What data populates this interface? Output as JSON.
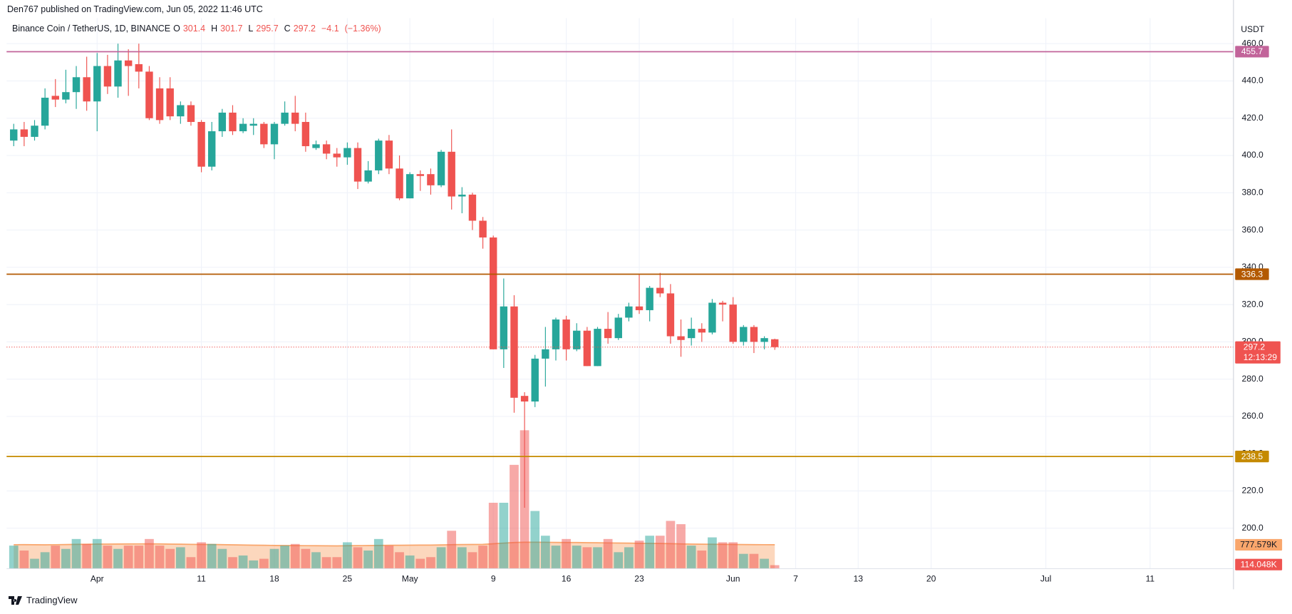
{
  "header": {
    "published": "Den767 published on TradingView.com, Jun 05, 2022 11:46 UTC",
    "symbol": "Binance Coin / TetherUS, 1D, BINANCE"
  },
  "footer": {
    "brand": "TradingView"
  },
  "chart_data": {
    "type": "candlestick",
    "currency": "USDT",
    "ohlc_header": {
      "open": {
        "label": "O",
        "value": 301.4
      },
      "high": {
        "label": "H",
        "value": 301.7
      },
      "low": {
        "label": "L",
        "value": 295.7
      },
      "close": {
        "label": "C",
        "value": 297.2
      },
      "change": {
        "value": -4.1,
        "label": "−4.1"
      },
      "change_pct": {
        "value": -1.36,
        "label": "(−1.36%)"
      }
    },
    "up_color": "#26a69a",
    "down_color": "#ef5350",
    "volume_ma_color": "#f9a66c",
    "x": [
      "2022-03-24",
      "2022-03-25",
      "2022-03-26",
      "2022-03-27",
      "2022-03-28",
      "2022-03-29",
      "2022-03-30",
      "2022-03-31",
      "2022-04-01",
      "2022-04-02",
      "2022-04-03",
      "2022-04-04",
      "2022-04-05",
      "2022-04-06",
      "2022-04-07",
      "2022-04-08",
      "2022-04-09",
      "2022-04-10",
      "2022-04-11",
      "2022-04-12",
      "2022-04-13",
      "2022-04-14",
      "2022-04-15",
      "2022-04-16",
      "2022-04-17",
      "2022-04-18",
      "2022-04-19",
      "2022-04-20",
      "2022-04-21",
      "2022-04-22",
      "2022-04-23",
      "2022-04-24",
      "2022-04-25",
      "2022-04-26",
      "2022-04-27",
      "2022-04-28",
      "2022-04-29",
      "2022-04-30",
      "2022-05-01",
      "2022-05-02",
      "2022-05-03",
      "2022-05-04",
      "2022-05-05",
      "2022-05-06",
      "2022-05-07",
      "2022-05-08",
      "2022-05-09",
      "2022-05-10",
      "2022-05-11",
      "2022-05-12",
      "2022-05-13",
      "2022-05-14",
      "2022-05-15",
      "2022-05-16",
      "2022-05-17",
      "2022-05-18",
      "2022-05-19",
      "2022-05-20",
      "2022-05-21",
      "2022-05-22",
      "2022-05-23",
      "2022-05-24",
      "2022-05-25",
      "2022-05-26",
      "2022-05-27",
      "2022-05-28",
      "2022-05-29",
      "2022-05-30",
      "2022-05-31",
      "2022-06-01",
      "2022-06-02",
      "2022-06-03",
      "2022-06-04",
      "2022-06-05"
    ],
    "open": [
      408,
      414,
      410,
      416,
      432,
      430,
      434,
      442,
      429,
      448,
      437,
      451,
      449,
      445,
      436,
      436,
      421,
      427,
      418,
      394,
      413,
      423,
      413,
      416,
      417,
      406,
      417,
      423,
      418,
      404,
      406,
      401,
      399,
      404,
      386,
      392,
      408,
      393,
      377,
      390,
      390,
      384,
      402,
      378,
      379,
      365,
      356,
      296,
      319,
      271,
      268,
      291,
      296,
      312,
      296,
      306,
      287,
      307,
      302,
      313,
      319,
      317,
      329,
      326,
      303,
      302,
      307,
      305,
      321,
      320,
      300,
      308,
      300,
      301.4
    ],
    "high": [
      417,
      418,
      419,
      436,
      441,
      446,
      448,
      453,
      455,
      454,
      460,
      457,
      460,
      448,
      442,
      442,
      429,
      429,
      419,
      418,
      425,
      427,
      420,
      420,
      418,
      418,
      429,
      432,
      423,
      408,
      408,
      404,
      407,
      407,
      397,
      409,
      411,
      400,
      391,
      392,
      393,
      403,
      414,
      383,
      380,
      367,
      357,
      334,
      325,
      273,
      293,
      308,
      313,
      314,
      310,
      308,
      308,
      316,
      315,
      321,
      336,
      330,
      337,
      331,
      312,
      313,
      310,
      323,
      322,
      324,
      309,
      309,
      303,
      301.7
    ],
    "low": [
      405,
      405,
      408,
      414,
      426,
      428,
      425,
      424,
      413,
      433,
      431,
      432,
      436,
      419,
      417,
      419,
      417,
      416,
      391,
      392,
      410,
      411,
      412,
      411,
      404,
      398,
      416,
      413,
      402,
      403,
      398,
      394,
      395,
      382,
      385,
      390,
      390,
      376,
      377,
      381,
      379,
      383,
      371,
      369,
      360,
      350,
      296,
      286,
      262,
      211,
      265,
      276,
      290,
      290,
      295,
      287,
      287,
      299,
      301,
      311,
      315,
      311,
      324,
      299,
      292,
      298,
      300,
      304,
      311,
      299,
      298,
      294,
      296,
      295.7
    ],
    "close": [
      414,
      410,
      416,
      431,
      430,
      434,
      442,
      429,
      448,
      437,
      451,
      448,
      445,
      420,
      419,
      421,
      427,
      418,
      394,
      413,
      423,
      413,
      417,
      417,
      406,
      417,
      423,
      417,
      405,
      406,
      401,
      399,
      404,
      386,
      392,
      408,
      393,
      377,
      390,
      389,
      384,
      402,
      378,
      379,
      365,
      356,
      296,
      319,
      270,
      268,
      291,
      296,
      312,
      296,
      306,
      287,
      307,
      302,
      313,
      319,
      317,
      329,
      326,
      303,
      301,
      307,
      305,
      321,
      320,
      300,
      308,
      300,
      302,
      297.2
    ],
    "volume": [
      750000,
      590000,
      322000,
      536000,
      750000,
      643000,
      965000,
      804000,
      965000,
      750000,
      643000,
      750000,
      750000,
      965000,
      750000,
      643000,
      697000,
      375000,
      858000,
      804000,
      643000,
      375000,
      429000,
      268000,
      322000,
      643000,
      750000,
      804000,
      643000,
      536000,
      375000,
      375000,
      858000,
      697000,
      590000,
      965000,
      750000,
      536000,
      429000,
      322000,
      375000,
      697000,
      1233000,
      697000,
      536000,
      750000,
      2144000,
      2144000,
      3377000,
      4502000,
      1876000,
      1072000,
      750000,
      965000,
      750000,
      697000,
      697000,
      965000,
      536000,
      697000,
      911000,
      1072000,
      1072000,
      1554000,
      1447000,
      750000,
      590000,
      1018000,
      858000,
      858000,
      482000,
      482000,
      322000,
      114048
    ],
    "volume_ma": [
      780000,
      782000,
      778000,
      775000,
      780000,
      784000,
      790000,
      792000,
      798000,
      800000,
      802000,
      805000,
      806000,
      808000,
      805000,
      800000,
      796000,
      790000,
      788000,
      786000,
      782000,
      776000,
      770000,
      764000,
      760000,
      756000,
      752000,
      750000,
      748000,
      746000,
      744000,
      742000,
      746000,
      750000,
      752000,
      756000,
      760000,
      762000,
      764000,
      766000,
      768000,
      772000,
      780000,
      784000,
      786000,
      790000,
      810000,
      830000,
      850000,
      860000,
      860000,
      858000,
      855000,
      852000,
      850000,
      846000,
      842000,
      838000,
      834000,
      830000,
      826000,
      822000,
      818000,
      812000,
      806000,
      800000,
      796000,
      792000,
      790000,
      788000,
      785000,
      782000,
      780000,
      777579
    ],
    "volume_labels": [
      {
        "value": 777579,
        "label": "777.579K",
        "color": "#f9a66c"
      },
      {
        "value": 114048,
        "label": "114.048K",
        "color": "#ef5350"
      }
    ],
    "vlim": [
      0,
      4600000
    ],
    "levels": [
      {
        "value": 455.7,
        "color": "#c2649a"
      },
      {
        "value": 336.3,
        "color": "#b35900"
      },
      {
        "value": 238.5,
        "color": "#c58a00"
      }
    ],
    "last_price": {
      "value": 297.2,
      "countdown": "12:13:29",
      "color": "#ef5350"
    },
    "ylim": [
      178.3,
      473.7
    ],
    "yticks": [
      {
        "value": 200,
        "label": "200.0"
      },
      {
        "value": 220,
        "label": "220.0"
      },
      {
        "value": 240,
        "label": "240.0"
      },
      {
        "value": 260,
        "label": "260.0"
      },
      {
        "value": 280,
        "label": "280.0"
      },
      {
        "value": 300,
        "label": "300.0"
      },
      {
        "value": 320,
        "label": "320.0"
      },
      {
        "value": 340,
        "label": "340.0"
      },
      {
        "value": 360,
        "label": "360.0"
      },
      {
        "value": 380,
        "label": "380.0"
      },
      {
        "value": 400,
        "label": "400.0"
      },
      {
        "value": 420,
        "label": "420.0"
      },
      {
        "value": 440,
        "label": "440.0"
      },
      {
        "value": 460,
        "label": "460.0"
      }
    ],
    "xlim": [
      "2022-03-23",
      "2022-07-19"
    ],
    "xticks": [
      {
        "value": "2022-04-01",
        "label": "Apr"
      },
      {
        "value": "2022-04-11",
        "label": "11"
      },
      {
        "value": "2022-04-18",
        "label": "18"
      },
      {
        "value": "2022-04-25",
        "label": "25"
      },
      {
        "value": "2022-05-01",
        "label": "May"
      },
      {
        "value": "2022-05-09",
        "label": "9"
      },
      {
        "value": "2022-05-16",
        "label": "16"
      },
      {
        "value": "2022-05-23",
        "label": "23"
      },
      {
        "value": "2022-06-01",
        "label": "Jun"
      },
      {
        "value": "2022-06-07",
        "label": "7"
      },
      {
        "value": "2022-06-13",
        "label": "13"
      },
      {
        "value": "2022-06-20",
        "label": "20"
      },
      {
        "value": "2022-07-01",
        "label": "Jul"
      },
      {
        "value": "2022-07-11",
        "label": "11"
      }
    ],
    "grid": true
  }
}
